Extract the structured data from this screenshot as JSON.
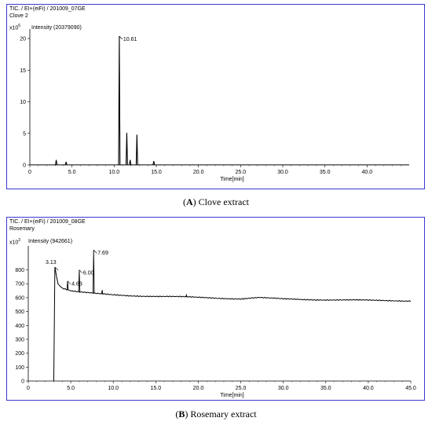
{
  "chart_data": [
    {
      "type": "line",
      "header_line1": "TIC. / EI+(eiFi) / 201009_07GE",
      "header_line2": "Clove 2",
      "y_multiplier": "x10",
      "y_multiplier_exp": "6",
      "intensity_label": "Intensity (20379090)",
      "xlabel": "Time[min]",
      "xlim": [
        0,
        45
      ],
      "ylim": [
        0,
        21
      ],
      "x_ticks": [
        "0",
        "5.0",
        "10.0",
        "15.0",
        "20.0",
        "25.0",
        "30.0",
        "35.0",
        "40.0"
      ],
      "x_tick_values": [
        0,
        5,
        10,
        15,
        20,
        25,
        30,
        35,
        40
      ],
      "y_ticks": [
        "0",
        "5",
        "10",
        "15",
        "20"
      ],
      "y_tick_values": [
        0,
        5,
        10,
        15,
        20
      ],
      "baseline": 0.05,
      "peaks": [
        {
          "t": 3.13,
          "h": 0.8
        },
        {
          "t": 4.3,
          "h": 0.5
        },
        {
          "t": 10.61,
          "h": 20.38
        },
        {
          "t": 11.5,
          "h": 5.1
        },
        {
          "t": 11.9,
          "h": 0.8
        },
        {
          "t": 12.7,
          "h": 4.8
        },
        {
          "t": 14.7,
          "h": 0.6
        }
      ],
      "annotations": [
        {
          "label": "10.61",
          "t": 10.61,
          "h": 20.38
        }
      ],
      "caption_letter": "A",
      "caption_text": " Clove extract"
    },
    {
      "type": "line",
      "header_line1": "TIC. / EI+(eiFi) / 201009_08GE",
      "header_line2": "Rosemary",
      "y_multiplier": "x10",
      "y_multiplier_exp": "3",
      "intensity_label": "Intensity (942661)",
      "xlabel": "Time[min]",
      "xlim": [
        0,
        45
      ],
      "ylim": [
        0,
        950
      ],
      "x_ticks": [
        "0",
        "5.0",
        "10.0",
        "15.0",
        "20.0",
        "25.0",
        "30.0",
        "35.0",
        "40.0",
        "45.0"
      ],
      "x_tick_values": [
        0,
        5,
        10,
        15,
        20,
        25,
        30,
        35,
        40,
        45
      ],
      "y_ticks": [
        "0",
        "100",
        "200",
        "300",
        "400",
        "500",
        "600",
        "700",
        "800"
      ],
      "y_tick_values": [
        0,
        100,
        200,
        300,
        400,
        500,
        600,
        700,
        800
      ],
      "start": 3.0,
      "baseline": [
        [
          3.13,
          810
        ],
        [
          3.5,
          700
        ],
        [
          4.0,
          670
        ],
        [
          5.0,
          650
        ],
        [
          6.0,
          640
        ],
        [
          8.0,
          628
        ],
        [
          10.0,
          620
        ],
        [
          12.0,
          615
        ],
        [
          15.0,
          610
        ],
        [
          18.0,
          605
        ],
        [
          22.0,
          598
        ],
        [
          25.0,
          592
        ],
        [
          27.0,
          600
        ],
        [
          30.0,
          590
        ],
        [
          35.0,
          585
        ],
        [
          40.0,
          580
        ],
        [
          45.0,
          578
        ]
      ],
      "peaks": [
        {
          "t": 3.13,
          "h": 820
        },
        {
          "t": 4.63,
          "h": 720
        },
        {
          "t": 6.0,
          "h": 800
        },
        {
          "t": 7.69,
          "h": 943
        },
        {
          "t": 8.7,
          "h": 655
        },
        {
          "t": 18.6,
          "h": 620
        }
      ],
      "annotations": [
        {
          "label": "3.13",
          "t": 3.13,
          "h": 820
        },
        {
          "label": "4.63",
          "t": 4.63,
          "h": 720
        },
        {
          "label": "6.00",
          "t": 6.0,
          "h": 800
        },
        {
          "label": "7.69",
          "t": 7.69,
          "h": 943
        }
      ],
      "caption_letter": "B",
      "caption_text": " Rosemary extract"
    }
  ]
}
